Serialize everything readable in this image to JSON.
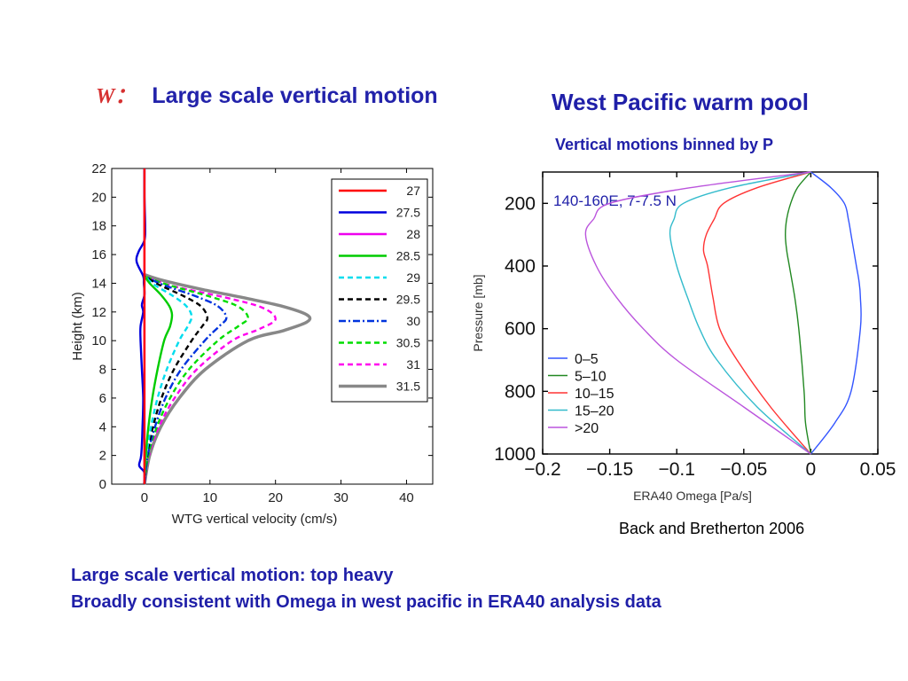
{
  "slide": {
    "left_title_symbol": "W：",
    "left_title": "Large scale vertical motion",
    "right_title": "West Pacific warm pool",
    "right_subtitle": "Vertical motions binned by P",
    "citation": "Back and Bretherton 2006",
    "conclusions": [
      "Large scale vertical motion: top heavy",
      "Broadly consistent with Omega in west pacific in ERA40 analysis data"
    ]
  },
  "chart_data": [
    {
      "type": "line",
      "xlabel": "WTG vertical velocity (cm/s)",
      "ylabel": "Height (km)",
      "xlim": [
        -5,
        44
      ],
      "ylim": [
        0,
        22
      ],
      "xticks": [
        0,
        10,
        20,
        30,
        40
      ],
      "yticks": [
        0,
        2,
        4,
        6,
        8,
        10,
        12,
        14,
        16,
        18,
        20,
        22
      ],
      "grid": false,
      "legend": "top-right",
      "series": [
        {
          "name": "27",
          "color": "#ff0000",
          "dash": "solid",
          "x": [
            0,
            0,
            0,
            0,
            0,
            0,
            0,
            0,
            0,
            0,
            0,
            0,
            0
          ],
          "y": [
            0,
            2,
            4,
            6,
            8,
            10,
            11,
            12,
            13,
            14,
            16,
            18,
            22
          ]
        },
        {
          "name": "27.5",
          "color": "#0000dd",
          "dash": "solid",
          "x": [
            0,
            0,
            -0.8,
            -0.5,
            -0.3,
            -0.2,
            -0.4,
            -0.6,
            -0.6,
            -0.2,
            -0.4,
            0,
            -0.1,
            -0.2,
            -1.2,
            -0.9,
            0,
            0.1,
            0,
            0
          ],
          "y": [
            0,
            0.8,
            1.3,
            2,
            4,
            6,
            8,
            10,
            11,
            12,
            12.5,
            13.2,
            14,
            14.5,
            15.5,
            16.2,
            17,
            18,
            20,
            22
          ]
        },
        {
          "name": "28",
          "color": "#ee00ee",
          "dash": "solid",
          "x": [
            0,
            0,
            0,
            0,
            0,
            0,
            0,
            0,
            0,
            0,
            0
          ],
          "y": [
            0,
            2,
            4,
            6,
            8,
            10,
            11,
            12,
            13,
            14,
            22
          ]
        },
        {
          "name": "28.5",
          "color": "#00cc00",
          "dash": "solid",
          "x": [
            0,
            0.2,
            0.6,
            1.2,
            2,
            3,
            3.9,
            4.2,
            3.8,
            2.5,
            0.8,
            0
          ],
          "y": [
            0,
            2,
            4,
            6,
            8,
            10,
            11,
            11.8,
            12.4,
            13.2,
            14,
            14.5
          ]
        },
        {
          "name": "29",
          "color": "#00ddee",
          "dash": "dash",
          "x": [
            0,
            0.3,
            1,
            2,
            3.4,
            5.3,
            6.6,
            7.2,
            6.4,
            4.4,
            1.5,
            0
          ],
          "y": [
            0,
            2,
            4,
            6,
            8,
            10,
            11,
            11.7,
            12.4,
            13.1,
            13.9,
            14.5
          ]
        },
        {
          "name": "29.5",
          "color": "#000000",
          "dash": "dash",
          "x": [
            0,
            0.4,
            1.3,
            2.6,
            4.5,
            7.2,
            8.8,
            9.6,
            8.6,
            6,
            2.2,
            0
          ],
          "y": [
            0,
            2,
            4,
            6,
            8,
            10,
            11,
            11.6,
            12.4,
            13.1,
            13.9,
            14.5
          ]
        },
        {
          "name": "30",
          "color": "#0033dd",
          "dash": "dashdot",
          "x": [
            0,
            0.5,
            1.6,
            3.2,
            5.6,
            9.2,
            11.4,
            12.5,
            11.2,
            7.8,
            2.8,
            0
          ],
          "y": [
            0,
            2,
            4,
            6,
            8,
            10,
            11,
            11.6,
            12.4,
            13.1,
            13.9,
            14.5
          ]
        },
        {
          "name": "30.5",
          "color": "#00dd00",
          "dash": "dash",
          "x": [
            0,
            0.6,
            1.9,
            3.9,
            6.8,
            11.2,
            14.3,
            15.8,
            14.2,
            9.8,
            3.5,
            0
          ],
          "y": [
            0,
            2,
            4,
            6,
            8,
            10,
            11,
            11.6,
            12.4,
            13.1,
            13.9,
            14.5
          ]
        },
        {
          "name": "31",
          "color": "#ff00ee",
          "dash": "dash",
          "x": [
            0,
            0.7,
            2.2,
            4.6,
            8,
            13.4,
            17.5,
            20,
            18,
            12.4,
            4.4,
            0
          ],
          "y": [
            0,
            2,
            4,
            6,
            8,
            10,
            10.8,
            11.5,
            12.3,
            13,
            13.8,
            14.5
          ]
        },
        {
          "name": "31.5",
          "color": "#888888",
          "dash": "solid",
          "x": [
            0,
            0.8,
            2.5,
            5.3,
            9.3,
            15.8,
            21.2,
            24.8,
            24.8,
            21,
            15,
            8.5,
            2.8,
            0
          ],
          "y": [
            0,
            2,
            4,
            6,
            8,
            10,
            10.7,
            11.3,
            11.8,
            12.4,
            13,
            13.6,
            14.2,
            14.6
          ]
        }
      ]
    },
    {
      "type": "line",
      "annotation": "140-160E, 7-7.5 N",
      "xlabel": "ERA40 Omega [Pa/s]",
      "ylabel": "Pressure [mb]",
      "xlim": [
        -0.2,
        0.05
      ],
      "ylim": [
        1000,
        100
      ],
      "y_inverted": true,
      "xticks": [
        -0.2,
        -0.15,
        -0.1,
        -0.05,
        0,
        0.05
      ],
      "xtick_labels": [
        "−0.2",
        "−0.15",
        "−0.1",
        "−0.05",
        "0",
        "0.05"
      ],
      "yticks": [
        200,
        400,
        600,
        800,
        1000
      ],
      "grid": false,
      "legend": "bottom-left",
      "series": [
        {
          "name": "0–5",
          "color": "#3355ff",
          "x": [
            0,
            0.015,
            0.025,
            0.028,
            0.03,
            0.032,
            0.034,
            0.036,
            0.037,
            0.037,
            0.03,
            0.018,
            0
          ],
          "y": [
            100,
            150,
            200,
            250,
            300,
            350,
            400,
            450,
            500,
            600,
            800,
            900,
            1000
          ]
        },
        {
          "name": "5–10",
          "color": "#228822",
          "x": [
            0,
            -0.01,
            -0.015,
            -0.018,
            -0.019,
            -0.018,
            -0.016,
            -0.012,
            -0.009,
            -0.005,
            -0.004,
            0
          ],
          "y": [
            100,
            150,
            200,
            250,
            300,
            350,
            400,
            500,
            600,
            800,
            900,
            1000
          ]
        },
        {
          "name": "10–15",
          "color": "#ff3333",
          "x": [
            0,
            -0.04,
            -0.065,
            -0.072,
            -0.078,
            -0.08,
            -0.077,
            -0.073,
            -0.068,
            -0.055,
            -0.03,
            0
          ],
          "y": [
            100,
            150,
            200,
            250,
            300,
            350,
            400,
            500,
            600,
            700,
            850,
            1000
          ]
        },
        {
          "name": "15–20",
          "color": "#33bbcc",
          "x": [
            0,
            -0.06,
            -0.095,
            -0.102,
            -0.105,
            -0.1,
            -0.092,
            -0.083,
            -0.07,
            -0.04,
            0
          ],
          "y": [
            100,
            150,
            200,
            250,
            300,
            400,
            500,
            600,
            700,
            850,
            1000
          ]
        },
        {
          "name": ">20",
          "color": "#bb55dd",
          "x": [
            0,
            -0.09,
            -0.15,
            -0.162,
            -0.168,
            -0.16,
            -0.145,
            -0.125,
            -0.1,
            -0.05,
            0
          ],
          "y": [
            100,
            150,
            200,
            250,
            300,
            400,
            500,
            600,
            700,
            850,
            1000
          ]
        }
      ]
    }
  ]
}
